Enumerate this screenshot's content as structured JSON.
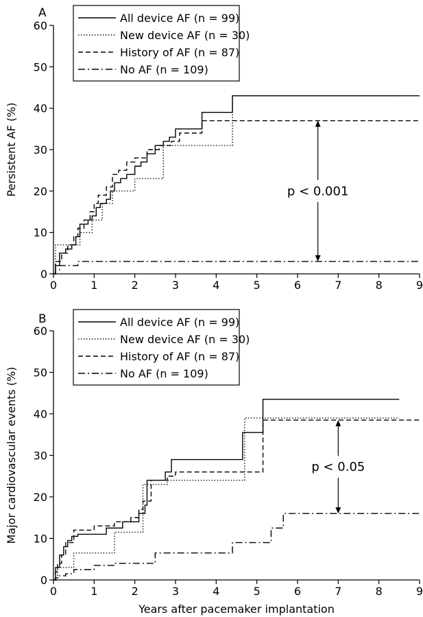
{
  "chart_data": [
    {
      "panel_label": "A",
      "type": "line",
      "step": true,
      "xlabel": "",
      "ylabel": "Persistent AF (%)",
      "xlim": [
        0,
        9
      ],
      "ylim": [
        0,
        60
      ],
      "x_ticks": [
        "0",
        "1",
        "2",
        "3",
        "4",
        "5",
        "6",
        "7",
        "8",
        "9"
      ],
      "y_ticks": [
        "0",
        "10",
        "20",
        "30",
        "40",
        "50",
        "60"
      ],
      "legend_position": "top-left",
      "annotation": {
        "text": "p < 0.001",
        "x": 6.5,
        "y_top": 37,
        "y_bottom": 3
      },
      "series": [
        {
          "name": "All device AF (n = 99)",
          "style": "solid",
          "x": [
            0,
            0.05,
            0.15,
            0.3,
            0.45,
            0.55,
            0.65,
            0.85,
            0.95,
            1.05,
            1.15,
            1.3,
            1.4,
            1.5,
            1.65,
            1.8,
            2.0,
            2.15,
            2.3,
            2.5,
            2.7,
            2.85,
            3.0,
            3.65,
            4.4,
            9.0
          ],
          "y": [
            0,
            2,
            5,
            6,
            7,
            9,
            12,
            13,
            14,
            16,
            17,
            18,
            20,
            22,
            23,
            24,
            26,
            27,
            29,
            31,
            32,
            33,
            35,
            39,
            43,
            43
          ]
        },
        {
          "name": "New device AF (n = 30)",
          "style": "dotted",
          "x": [
            0,
            0.05,
            0.4,
            0.65,
            0.95,
            1.2,
            1.45,
            1.65,
            2.0,
            2.4,
            2.7,
            4.4,
            8.5
          ],
          "y": [
            0,
            7,
            7,
            10,
            13,
            17,
            20,
            20,
            23,
            23,
            31,
            43,
            43
          ]
        },
        {
          "name": "History of AF (n = 87)",
          "style": "dashed",
          "x": [
            0,
            0.05,
            0.2,
            0.35,
            0.5,
            0.6,
            0.75,
            0.9,
            1.0,
            1.1,
            1.3,
            1.45,
            1.6,
            1.8,
            2.0,
            2.3,
            2.6,
            2.9,
            3.1,
            3.65,
            9.0
          ],
          "y": [
            0,
            3,
            5,
            7,
            9,
            11,
            13,
            15,
            17,
            19,
            21,
            24,
            25,
            27,
            28,
            30,
            31,
            32,
            34,
            37,
            37
          ]
        },
        {
          "name": "No AF (n = 109)",
          "style": "dashdot",
          "x": [
            0,
            0.05,
            0.15,
            0.4,
            0.6,
            9.0
          ],
          "y": [
            0,
            1,
            2,
            2,
            3,
            3
          ]
        }
      ]
    },
    {
      "panel_label": "B",
      "type": "line",
      "step": true,
      "xlabel": "Years after pacemaker implantation",
      "ylabel": "Major cardiovascular events (%)",
      "xlim": [
        0,
        9
      ],
      "ylim": [
        0,
        60
      ],
      "x_ticks": [
        "0",
        "1",
        "2",
        "3",
        "4",
        "5",
        "6",
        "7",
        "8",
        "9"
      ],
      "y_ticks": [
        "0",
        "10",
        "20",
        "30",
        "40",
        "50",
        "60"
      ],
      "legend_position": "top-left",
      "annotation": {
        "text": "p < 0.05",
        "x": 7.0,
        "y_top": 38.5,
        "y_bottom": 16
      },
      "series": [
        {
          "name": "All device AF (n = 99)",
          "style": "solid",
          "x": [
            0,
            0.05,
            0.15,
            0.25,
            0.35,
            0.45,
            0.6,
            1.3,
            1.7,
            2.1,
            2.25,
            2.3,
            2.75,
            2.9,
            4.65,
            5.15,
            8.5
          ],
          "y": [
            0,
            3,
            6,
            8,
            9.5,
            10.5,
            11,
            12.5,
            14,
            16,
            18,
            24,
            26,
            29,
            35.5,
            43.5,
            43.5
          ]
        },
        {
          "name": "New device AF (n = 30)",
          "style": "dotted",
          "x": [
            0,
            0.1,
            0.5,
            1.5,
            2.2,
            2.8,
            4.7,
            8.5
          ],
          "y": [
            0,
            3,
            6.5,
            11.5,
            23,
            24,
            39,
            39
          ]
        },
        {
          "name": "History of AF (n = 87)",
          "style": "dashed",
          "x": [
            0,
            0.05,
            0.1,
            0.2,
            0.3,
            0.5,
            1.0,
            1.5,
            1.9,
            2.1,
            2.2,
            2.4,
            2.8,
            3.0,
            4.7,
            5.15,
            9.0
          ],
          "y": [
            0,
            2,
            4,
            6,
            9,
            12,
            13,
            14,
            15,
            17,
            19,
            24,
            25,
            26,
            26,
            38.5,
            38.5
          ]
        },
        {
          "name": "No AF (n = 109)",
          "style": "dashdot",
          "x": [
            0,
            0.05,
            0.1,
            0.3,
            0.5,
            1.0,
            1.5,
            2.1,
            2.5,
            4.15,
            4.4,
            5.1,
            5.35,
            5.65,
            9.0
          ],
          "y": [
            0,
            0.5,
            1,
            1.5,
            2.5,
            3.5,
            4,
            4,
            6.5,
            6.5,
            9,
            9,
            12.5,
            16,
            16
          ]
        }
      ]
    }
  ]
}
